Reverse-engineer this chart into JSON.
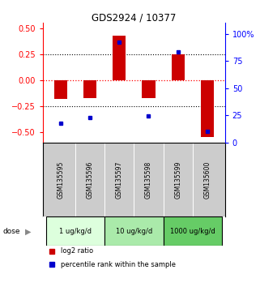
{
  "title": "GDS2924 / 10377",
  "samples": [
    "GSM135595",
    "GSM135596",
    "GSM135597",
    "GSM135598",
    "GSM135599",
    "GSM135600"
  ],
  "log2_ratio": [
    -0.18,
    -0.17,
    0.43,
    -0.17,
    0.25,
    -0.55
  ],
  "percentile_rank": [
    18,
    23,
    92,
    24,
    83,
    10
  ],
  "bar_color": "#cc0000",
  "dot_color": "#0000cc",
  "ylim_left": [
    -0.6,
    0.55
  ],
  "ylim_right": [
    0,
    110
  ],
  "yticks_left": [
    -0.5,
    -0.25,
    0,
    0.25,
    0.5
  ],
  "yticks_right": [
    0,
    25,
    50,
    75,
    100
  ],
  "dose_groups": [
    {
      "label": "1 ug/kg/d",
      "samples": [
        0,
        1
      ],
      "color": "#ddffdd"
    },
    {
      "label": "10 ug/kg/d",
      "samples": [
        2,
        3
      ],
      "color": "#aaeaaa"
    },
    {
      "label": "1000 ug/kg/d",
      "samples": [
        4,
        5
      ],
      "color": "#66cc66"
    }
  ],
  "dose_label": "dose",
  "legend_entries": [
    "log2 ratio",
    "percentile rank within the sample"
  ],
  "background_color": "#ffffff",
  "sample_bg_color": "#cccccc"
}
